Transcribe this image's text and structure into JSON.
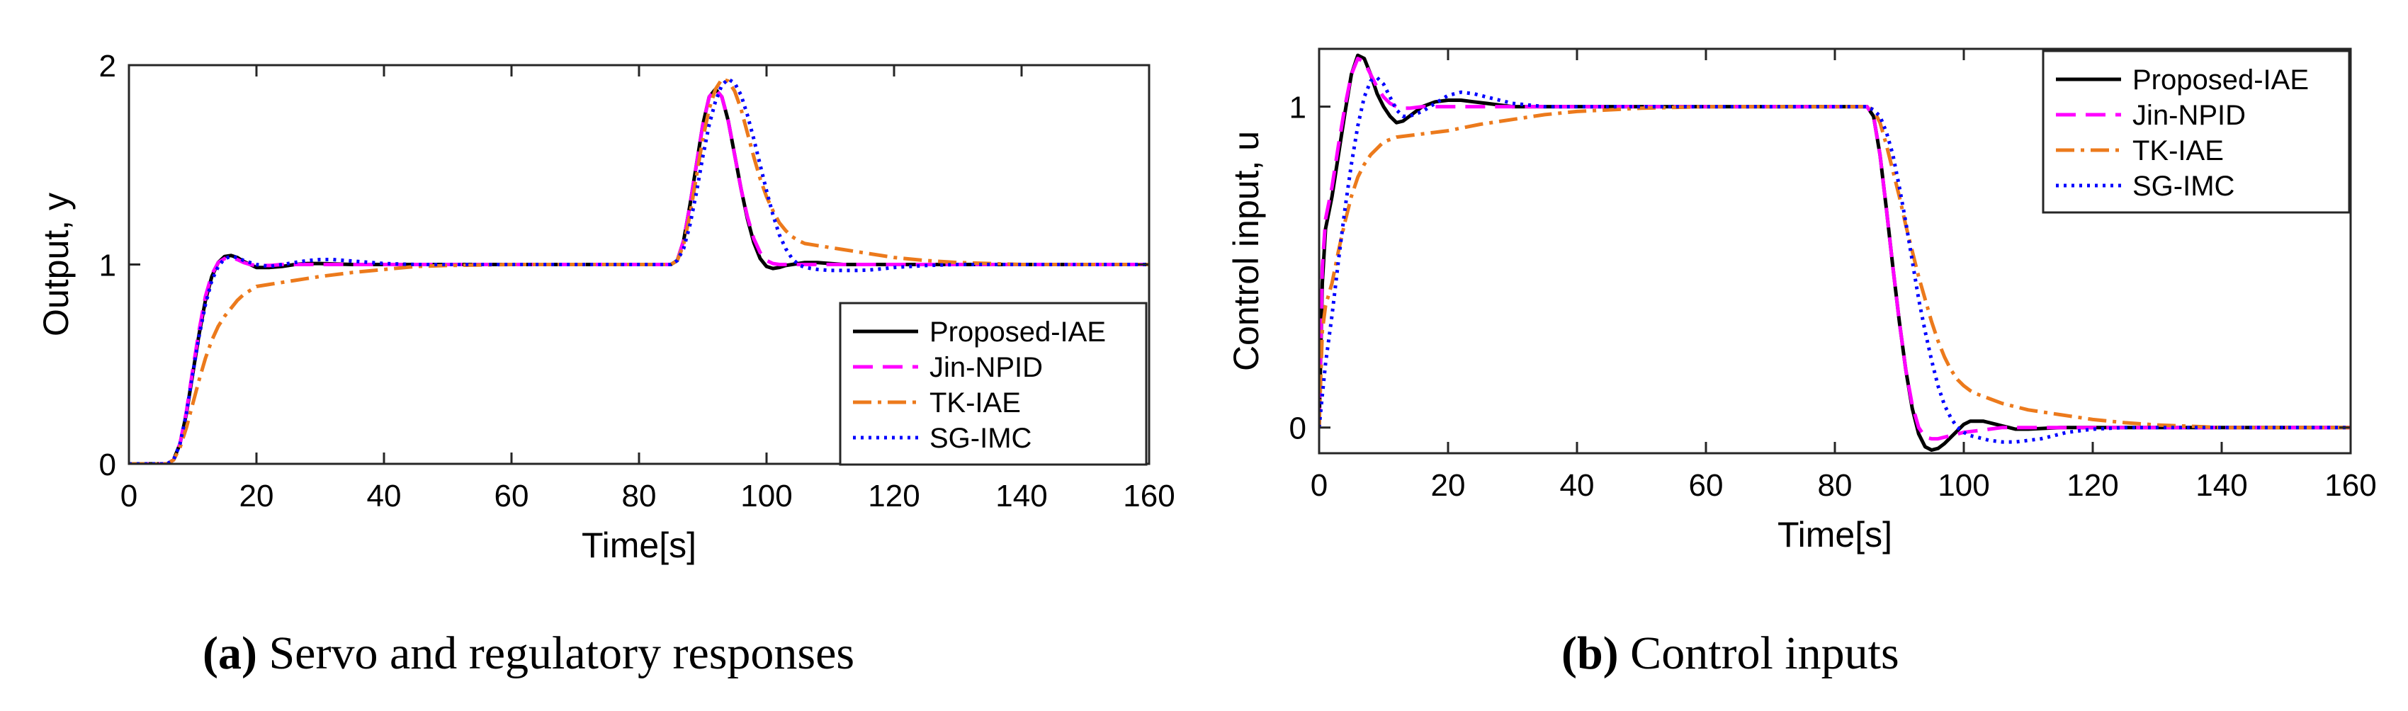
{
  "chart_data": [
    {
      "type": "line",
      "panel": "a",
      "xlabel": "Time[s]",
      "ylabel": "Output, y",
      "xlim": [
        0,
        160
      ],
      "ylim": [
        0,
        2
      ],
      "xticks": [
        0,
        20,
        40,
        60,
        80,
        100,
        120,
        140,
        160
      ],
      "yticks": [
        0,
        1,
        2
      ],
      "legend_position": "bottom-right",
      "caption_label": "(a)",
      "caption_text": "Servo and regulatory responses",
      "series": [
        {
          "name": "Proposed-IAE",
          "color": "#000000",
          "dash": "",
          "x": [
            0,
            6,
            7,
            8,
            9,
            10,
            11,
            12,
            13,
            14,
            15,
            16,
            17,
            18,
            19,
            20,
            22,
            24,
            26,
            28,
            30,
            35,
            40,
            50,
            60,
            70,
            80,
            85,
            86,
            87,
            88,
            89,
            90,
            91,
            92,
            93,
            94,
            95,
            96,
            97,
            98,
            99,
            100,
            101,
            102,
            103,
            104,
            105,
            106,
            108,
            110,
            112,
            115,
            120,
            130,
            140,
            160
          ],
          "y": [
            0,
            0,
            0.02,
            0.1,
            0.25,
            0.45,
            0.65,
            0.82,
            0.94,
            1.01,
            1.04,
            1.045,
            1.035,
            1.015,
            1.0,
            0.985,
            0.985,
            0.99,
            1.0,
            1.005,
            1.005,
            1.0,
            1.0,
            1.0,
            1.0,
            1.0,
            1.0,
            1.0,
            1.02,
            1.12,
            1.3,
            1.5,
            1.7,
            1.84,
            1.88,
            1.84,
            1.72,
            1.55,
            1.38,
            1.23,
            1.11,
            1.03,
            0.99,
            0.98,
            0.985,
            0.995,
            1.0,
            1.005,
            1.01,
            1.01,
            1.005,
            1.0,
            1.0,
            1.0,
            1.0,
            1.0,
            1.0
          ]
        },
        {
          "name": "Jin-NPID",
          "color": "#ff00ff",
          "dash": "28 14",
          "x": [
            0,
            6,
            7,
            8,
            9,
            10,
            11,
            12,
            13,
            14,
            15,
            16,
            17,
            18,
            19,
            20,
            22,
            24,
            26,
            28,
            30,
            35,
            40,
            50,
            60,
            70,
            80,
            85,
            86,
            87,
            88,
            89,
            90,
            91,
            92,
            93,
            94,
            95,
            96,
            97,
            98,
            99,
            100,
            101,
            102,
            103,
            104,
            105,
            106,
            108,
            110,
            115,
            120,
            130,
            140,
            160
          ],
          "y": [
            0,
            0,
            0.02,
            0.1,
            0.26,
            0.47,
            0.67,
            0.84,
            0.95,
            1.01,
            1.03,
            1.035,
            1.025,
            1.01,
            1.0,
            0.995,
            0.995,
            1.0,
            1.0,
            1.0,
            1.0,
            1.0,
            1.0,
            1.0,
            1.0,
            1.0,
            1.0,
            1.0,
            1.02,
            1.12,
            1.3,
            1.5,
            1.7,
            1.84,
            1.88,
            1.84,
            1.72,
            1.55,
            1.38,
            1.24,
            1.13,
            1.06,
            1.02,
            1.005,
            1.0,
            1.0,
            1.0,
            1.0,
            1.0,
            1.0,
            1.0,
            1.0,
            1.0,
            1.0,
            1.0,
            1.0
          ]
        },
        {
          "name": "TK-IAE",
          "color": "#ec7a1c",
          "dash": "26 9 5 9",
          "x": [
            0,
            6,
            7,
            8,
            9,
            10,
            11,
            12,
            13,
            14,
            15,
            16,
            17,
            18,
            19,
            20,
            22,
            24,
            26,
            28,
            30,
            35,
            40,
            45,
            50,
            60,
            70,
            80,
            85,
            86,
            87,
            88,
            89,
            90,
            91,
            92,
            93,
            94,
            95,
            96,
            97,
            98,
            99,
            100,
            101,
            102,
            103,
            104,
            105,
            106,
            107,
            108,
            110,
            112,
            115,
            120,
            125,
            130,
            140,
            150,
            160
          ],
          "y": [
            0,
            0,
            0.02,
            0.08,
            0.18,
            0.3,
            0.42,
            0.53,
            0.62,
            0.69,
            0.74,
            0.78,
            0.82,
            0.85,
            0.87,
            0.89,
            0.9,
            0.91,
            0.92,
            0.93,
            0.94,
            0.96,
            0.975,
            0.99,
            0.995,
            1.0,
            1.0,
            1.0,
            1.0,
            1.02,
            1.1,
            1.25,
            1.44,
            1.63,
            1.78,
            1.88,
            1.93,
            1.92,
            1.87,
            1.78,
            1.66,
            1.54,
            1.43,
            1.34,
            1.27,
            1.21,
            1.17,
            1.14,
            1.12,
            1.105,
            1.1,
            1.095,
            1.085,
            1.075,
            1.06,
            1.035,
            1.02,
            1.01,
            1.0,
            1.0,
            1.0
          ]
        },
        {
          "name": "SG-IMC",
          "color": "#0000ff",
          "dash": "4 7",
          "x": [
            0,
            6,
            7,
            8,
            9,
            10,
            11,
            12,
            13,
            14,
            15,
            16,
            17,
            18,
            19,
            20,
            22,
            24,
            26,
            28,
            30,
            32,
            34,
            36,
            40,
            45,
            50,
            60,
            70,
            80,
            85,
            86,
            87,
            88,
            89,
            90,
            91,
            92,
            93,
            94,
            95,
            96,
            97,
            98,
            99,
            100,
            101,
            102,
            103,
            104,
            105,
            106,
            108,
            110,
            112,
            114,
            116,
            118,
            120,
            125,
            130,
            140,
            160
          ],
          "y": [
            0,
            0,
            0.02,
            0.1,
            0.25,
            0.45,
            0.64,
            0.8,
            0.92,
            0.99,
            1.03,
            1.04,
            1.035,
            1.02,
            1.01,
            1.0,
            0.99,
            1.0,
            1.01,
            1.02,
            1.025,
            1.025,
            1.02,
            1.015,
            1.005,
            1.0,
            1.0,
            1.0,
            1.0,
            1.0,
            1.0,
            1.02,
            1.08,
            1.2,
            1.36,
            1.54,
            1.7,
            1.82,
            1.9,
            1.93,
            1.91,
            1.85,
            1.75,
            1.63,
            1.5,
            1.37,
            1.25,
            1.15,
            1.08,
            1.03,
            1.0,
            0.985,
            0.975,
            0.97,
            0.97,
            0.97,
            0.972,
            0.978,
            0.985,
            0.995,
            1.0,
            1.0,
            1.0
          ]
        }
      ]
    },
    {
      "type": "line",
      "panel": "b",
      "xlabel": "Time[s]",
      "ylabel": "Control input, u",
      "xlim": [
        0,
        160
      ],
      "ylim": [
        -0.08,
        1.18
      ],
      "xticks": [
        0,
        20,
        40,
        60,
        80,
        100,
        120,
        140,
        160
      ],
      "yticks": [
        0,
        1
      ],
      "legend_position": "top-right",
      "caption_label": "(b)",
      "caption_text": "Control inputs",
      "series": [
        {
          "name": "Proposed-IAE",
          "color": "#000000",
          "dash": "",
          "x": [
            0,
            0.5,
            1,
            2,
            3,
            4,
            5,
            6,
            7,
            8,
            9,
            10,
            11,
            12,
            13,
            14,
            15,
            16,
            18,
            20,
            22,
            24,
            26,
            28,
            30,
            35,
            40,
            50,
            60,
            70,
            80,
            85,
            86,
            87,
            88,
            89,
            90,
            91,
            92,
            93,
            94,
            95,
            96,
            97,
            98,
            99,
            100,
            101,
            102,
            103,
            104,
            105,
            106,
            107,
            108,
            110,
            115,
            120,
            140,
            160
          ],
          "y": [
            0,
            0.45,
            0.62,
            0.72,
            0.85,
            0.98,
            1.1,
            1.16,
            1.15,
            1.1,
            1.04,
            1.0,
            0.97,
            0.95,
            0.955,
            0.97,
            0.985,
            1.0,
            1.015,
            1.02,
            1.02,
            1.015,
            1.01,
            1.005,
            1.0,
            1.0,
            1.0,
            1.0,
            1.0,
            1.0,
            1.0,
            1.0,
            0.97,
            0.85,
            0.68,
            0.5,
            0.33,
            0.18,
            0.06,
            -0.02,
            -0.06,
            -0.07,
            -0.065,
            -0.05,
            -0.03,
            -0.01,
            0.01,
            0.02,
            0.02,
            0.02,
            0.015,
            0.01,
            0.005,
            0.0,
            -0.005,
            -0.005,
            0.0,
            0.0,
            0.0,
            0.0
          ]
        },
        {
          "name": "Jin-NPID",
          "color": "#ff00ff",
          "dash": "28 14",
          "x": [
            0,
            0.5,
            1,
            2,
            3,
            4,
            5,
            6,
            7,
            8,
            9,
            10,
            11,
            12,
            13,
            14,
            16,
            18,
            20,
            25,
            30,
            40,
            50,
            60,
            70,
            80,
            85,
            86,
            87,
            88,
            89,
            90,
            91,
            92,
            93,
            94,
            95,
            96,
            97,
            98,
            99,
            100,
            102,
            104,
            106,
            110,
            120,
            140,
            160
          ],
          "y": [
            0,
            0.5,
            0.65,
            0.75,
            0.88,
            1.0,
            1.1,
            1.15,
            1.14,
            1.1,
            1.06,
            1.03,
            1.01,
            1.0,
            0.995,
            0.995,
            1.0,
            1.0,
            1.0,
            1.0,
            1.0,
            1.0,
            1.0,
            1.0,
            1.0,
            1.0,
            1.0,
            0.97,
            0.85,
            0.68,
            0.5,
            0.33,
            0.18,
            0.07,
            0.0,
            -0.03,
            -0.035,
            -0.035,
            -0.03,
            -0.025,
            -0.02,
            -0.015,
            -0.01,
            -0.005,
            0.0,
            0.0,
            0.0,
            0.0,
            0.0
          ]
        },
        {
          "name": "TK-IAE",
          "color": "#ec7a1c",
          "dash": "26 9 5 9",
          "x": [
            0,
            0.5,
            1,
            2,
            3,
            4,
            5,
            6,
            7,
            8,
            9,
            10,
            12,
            14,
            16,
            18,
            20,
            25,
            30,
            35,
            40,
            45,
            50,
            60,
            70,
            80,
            85,
            86,
            87,
            88,
            89,
            90,
            91,
            92,
            93,
            94,
            95,
            96,
            97,
            98,
            99,
            100,
            101,
            102,
            104,
            106,
            108,
            110,
            115,
            120,
            125,
            130,
            140,
            160
          ],
          "y": [
            0,
            0.3,
            0.38,
            0.45,
            0.55,
            0.64,
            0.72,
            0.78,
            0.82,
            0.85,
            0.87,
            0.89,
            0.905,
            0.91,
            0.915,
            0.92,
            0.925,
            0.945,
            0.96,
            0.975,
            0.985,
            0.99,
            0.995,
            1.0,
            1.0,
            1.0,
            1.0,
            0.99,
            0.95,
            0.88,
            0.8,
            0.72,
            0.63,
            0.55,
            0.47,
            0.4,
            0.33,
            0.27,
            0.22,
            0.18,
            0.15,
            0.13,
            0.115,
            0.105,
            0.09,
            0.075,
            0.065,
            0.055,
            0.04,
            0.025,
            0.015,
            0.008,
            0.0,
            0.0
          ]
        },
        {
          "name": "SG-IMC",
          "color": "#0000ff",
          "dash": "4 7",
          "x": [
            0,
            0.5,
            1,
            2,
            3,
            4,
            5,
            6,
            7,
            8,
            9,
            10,
            11,
            12,
            13,
            14,
            16,
            18,
            20,
            22,
            24,
            26,
            28,
            30,
            35,
            40,
            50,
            60,
            70,
            80,
            85,
            86,
            87,
            88,
            89,
            90,
            91,
            92,
            93,
            94,
            95,
            96,
            97,
            98,
            99,
            100,
            101,
            102,
            104,
            106,
            108,
            110,
            112,
            114,
            116,
            118,
            120,
            125,
            130,
            140,
            160
          ],
          "y": [
            0,
            0.1,
            0.2,
            0.35,
            0.52,
            0.68,
            0.82,
            0.94,
            1.03,
            1.08,
            1.09,
            1.07,
            1.03,
            0.99,
            0.97,
            0.97,
            0.985,
            1.01,
            1.035,
            1.045,
            1.04,
            1.03,
            1.02,
            1.01,
            1.0,
            1.0,
            1.0,
            1.0,
            1.0,
            1.0,
            1.0,
            0.99,
            0.97,
            0.92,
            0.85,
            0.75,
            0.64,
            0.52,
            0.4,
            0.3,
            0.21,
            0.13,
            0.07,
            0.03,
            0.0,
            -0.015,
            -0.025,
            -0.03,
            -0.04,
            -0.045,
            -0.045,
            -0.04,
            -0.035,
            -0.025,
            -0.015,
            -0.01,
            -0.005,
            0.0,
            0.0,
            0.0,
            0.0
          ]
        }
      ]
    }
  ]
}
